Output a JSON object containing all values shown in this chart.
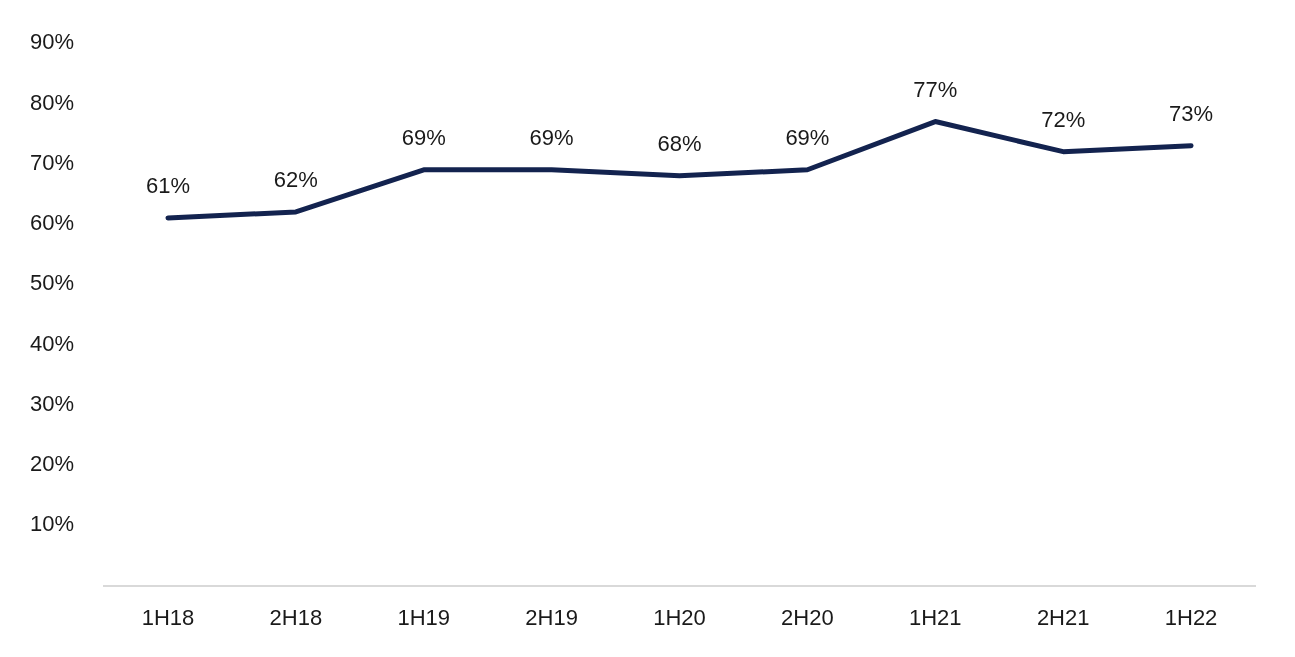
{
  "chart_data": {
    "type": "line",
    "categories": [
      "1H18",
      "2H18",
      "1H19",
      "2H19",
      "1H20",
      "2H20",
      "1H21",
      "2H21",
      "1H22"
    ],
    "series": [
      {
        "color": "#13234f",
        "values": [
          61,
          62,
          69,
          69,
          68,
          69,
          77,
          72,
          73
        ],
        "value_labels": [
          "61%",
          "62%",
          "69%",
          "69%",
          "68%",
          "69%",
          "77%",
          "72%",
          "73%"
        ]
      }
    ],
    "ylim": [
      0,
      90
    ],
    "yticks": [
      {
        "value": 10,
        "label": "10%"
      },
      {
        "value": 20,
        "label": "20%"
      },
      {
        "value": 30,
        "label": "30%"
      },
      {
        "value": 40,
        "label": "40%"
      },
      {
        "value": 50,
        "label": "50%"
      },
      {
        "value": 60,
        "label": "60%"
      },
      {
        "value": 70,
        "label": "70%"
      },
      {
        "value": 80,
        "label": "80%"
      },
      {
        "value": 90,
        "label": "90%"
      }
    ],
    "grid": false,
    "legend": false,
    "marker": "none",
    "line_style": "solid"
  }
}
